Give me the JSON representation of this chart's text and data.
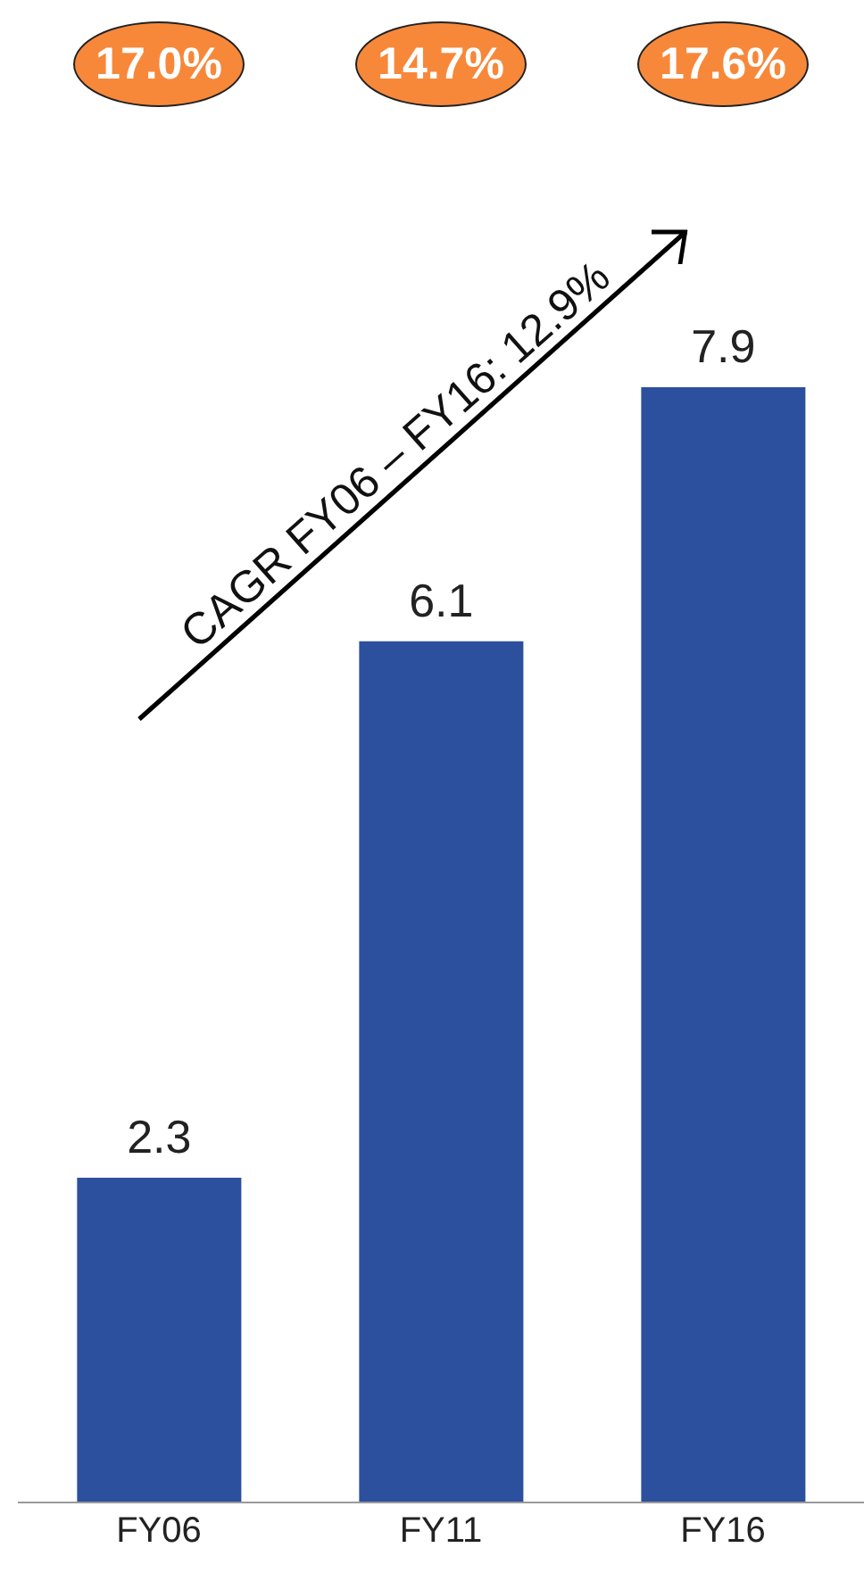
{
  "chart_data": {
    "type": "bar",
    "categories": [
      "FY06",
      "FY11",
      "FY16"
    ],
    "values": [
      2.3,
      6.1,
      7.9
    ],
    "color": "#2c4f9e",
    "data_labels": true,
    "annotations": [
      "17.0%",
      "14.7%",
      "17.6%",
      "CAGR FY06 – FY16: 12.9%"
    ]
  }
}
